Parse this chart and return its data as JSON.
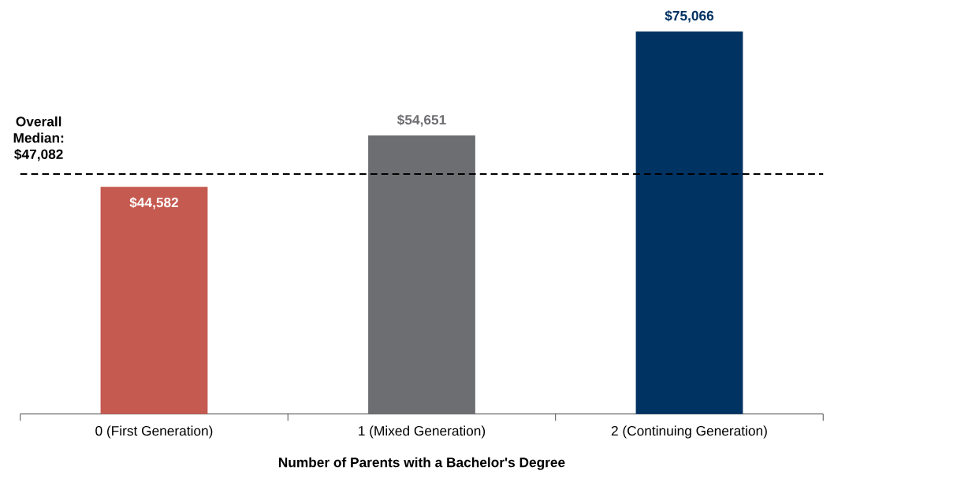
{
  "chart_data": {
    "type": "bar",
    "xlabel": "Number of Parents with a Bachelor's Degree",
    "categories": [
      "0 (First Generation)",
      "1 (Mixed Generation)",
      "2 (Continuing Generation)"
    ],
    "values": [
      44582,
      54651,
      75066
    ],
    "colors": [
      "#c55a50",
      "#6d6e71",
      "#003262"
    ],
    "value_labels": [
      "$44,582",
      "$54,651",
      "$75,066"
    ],
    "tick_labels": "x",
    "ref_lines": [
      {
        "axis": "y",
        "value": 47082,
        "label": "Overall Median: $47,082",
        "color": "#000000",
        "line_style": "dashed"
      }
    ]
  }
}
